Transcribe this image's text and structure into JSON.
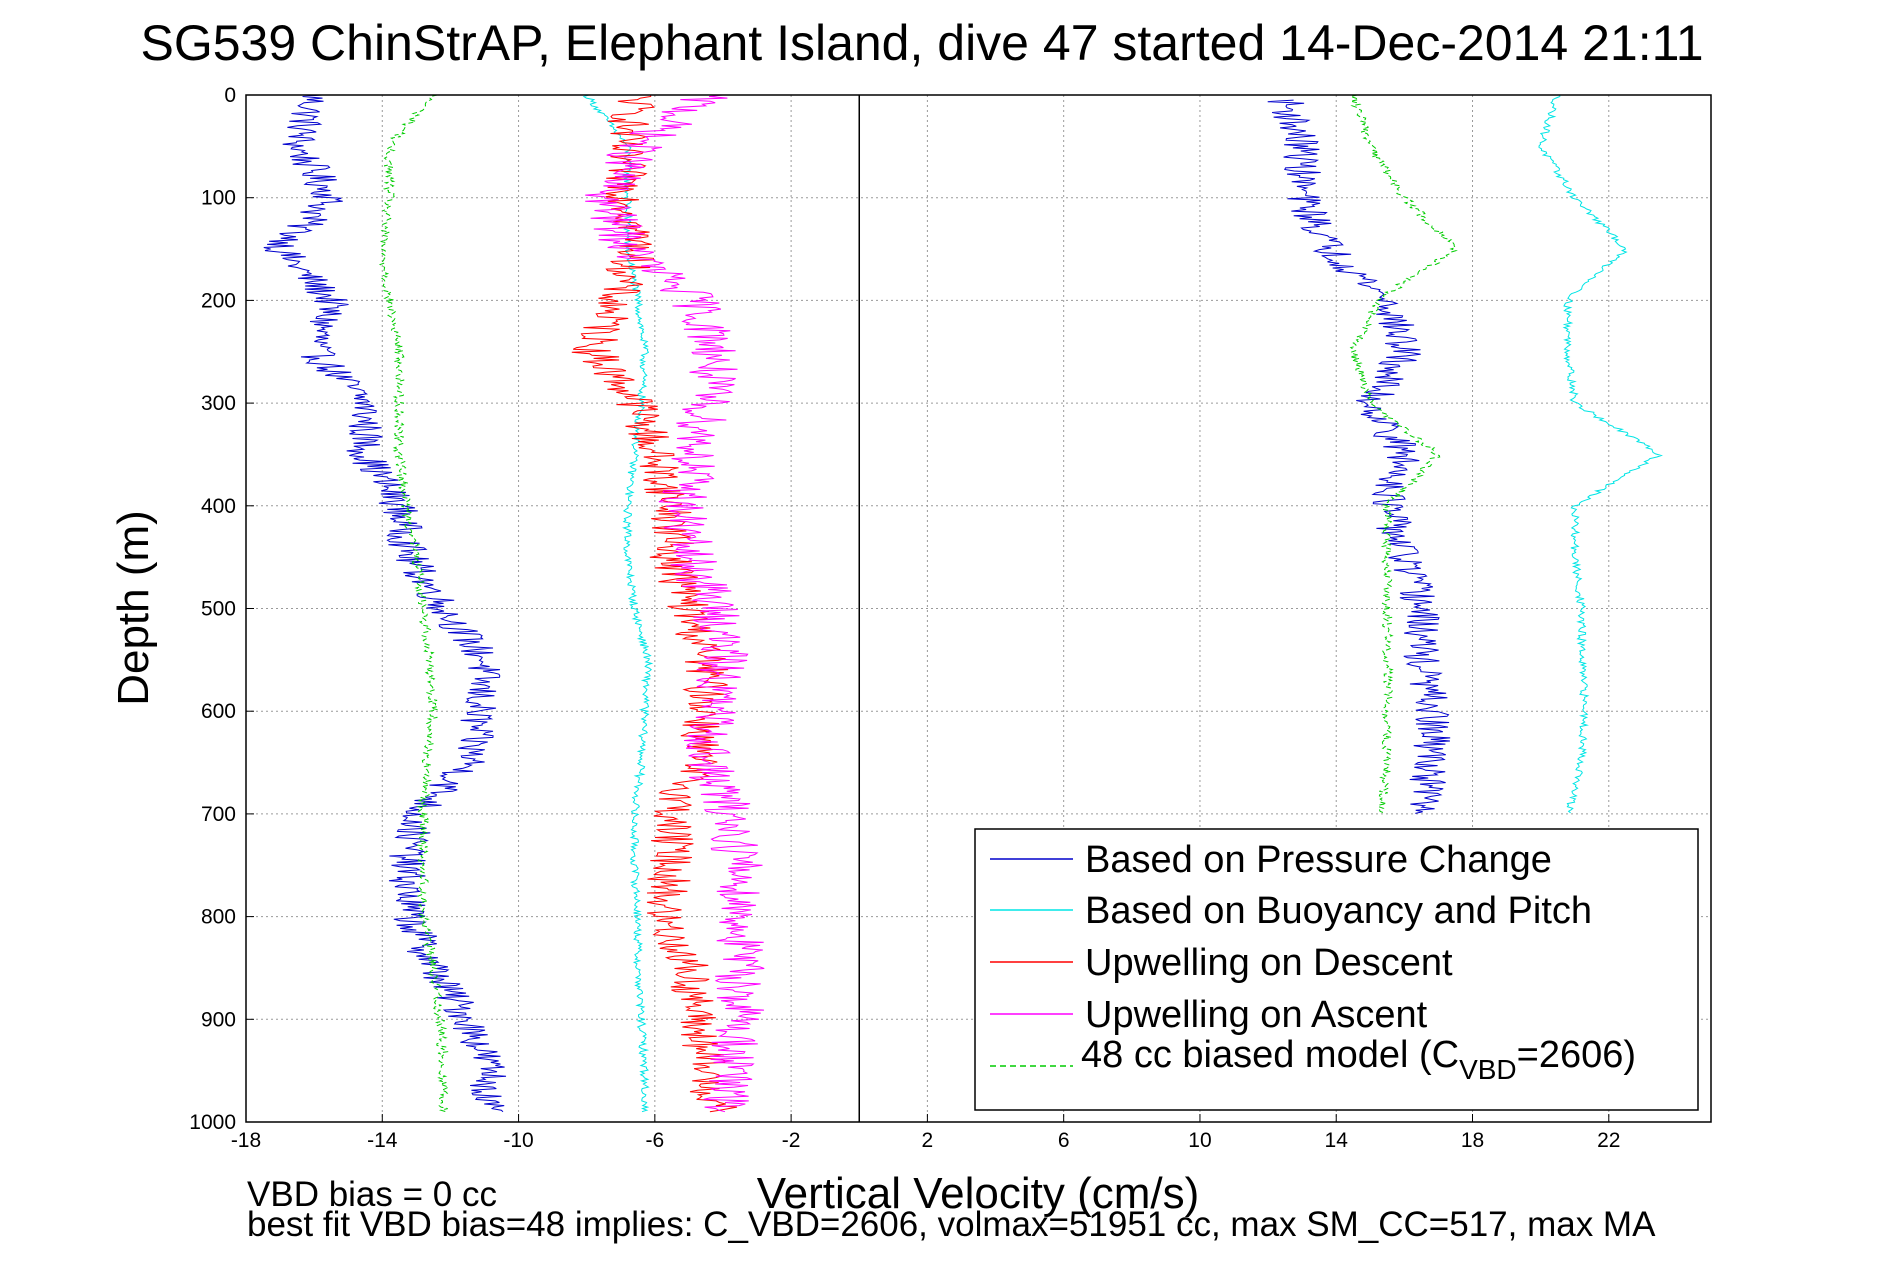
{
  "chart_data": {
    "type": "line",
    "title": "SG539 ChinStrAP, Elephant Island, dive 47 started 14-Dec-2014 21:11",
    "xlabel": "Vertical Velocity (cm/s)",
    "ylabel": "Depth (m)",
    "xlim": [
      -18,
      25
    ],
    "ylim": [
      0,
      1000
    ],
    "y_reversed": true,
    "grid": true,
    "xticks": [
      -18,
      -14,
      -10,
      -6,
      -2,
      2,
      6,
      10,
      14,
      18,
      22
    ],
    "yticks": [
      0,
      100,
      200,
      300,
      400,
      500,
      600,
      700,
      800,
      900,
      1000
    ],
    "xtick_labels": [
      "-18",
      "-14",
      "-10",
      "-6",
      "-2",
      "2",
      "6",
      "10",
      "14",
      "18",
      "22"
    ],
    "ytick_labels": [
      "0",
      "100",
      "200",
      "300",
      "400",
      "500",
      "600",
      "700",
      "800",
      "900",
      "1000"
    ],
    "legend_position": "bottom-right",
    "series": [
      {
        "name": "Based on Pressure Change",
        "color": "#0000cc",
        "style": "solid",
        "segments": [
          {
            "depth": [
              0,
              50,
              100,
              150,
              200,
              250,
              300,
              350,
              400,
              450,
              500,
              550,
              600,
              650,
              700,
              750,
              800,
              850,
              900,
              950,
              990
            ],
            "value": [
              -16.0,
              -16.5,
              -15.5,
              -17.0,
              -15.5,
              -16.0,
              -14.5,
              -14.5,
              -13.5,
              -13.2,
              -12.2,
              -11.0,
              -11.2,
              -11.4,
              -13.0,
              -13.3,
              -13.2,
              -12.5,
              -11.5,
              -10.8,
              -11.0
            ]
          },
          {
            "depth": [
              5,
              50,
              100,
              150,
              200,
              250,
              300,
              350,
              400,
              450,
              500,
              550,
              600,
              650,
              700
            ],
            "value": [
              12.5,
              13.0,
              13.0,
              13.8,
              15.5,
              16.0,
              15.0,
              16.0,
              15.5,
              16.0,
              16.5,
              16.5,
              16.8,
              16.8,
              16.5
            ]
          }
        ]
      },
      {
        "name": "Based on Buoyancy and Pitch",
        "color": "#00e5e5",
        "style": "solid",
        "segments": [
          {
            "depth": [
              0,
              50,
              100,
              150,
              200,
              250,
              300,
              350,
              400,
              450,
              500,
              550,
              600,
              650,
              700,
              750,
              800,
              850,
              900,
              950,
              990
            ],
            "value": [
              -8.0,
              -6.8,
              -6.8,
              -6.8,
              -6.5,
              -6.3,
              -6.4,
              -6.6,
              -6.8,
              -6.8,
              -6.6,
              -6.2,
              -6.3,
              -6.4,
              -6.6,
              -6.6,
              -6.5,
              -6.5,
              -6.4,
              -6.3,
              -6.3
            ]
          },
          {
            "depth": [
              0,
              50,
              100,
              150,
              200,
              250,
              300,
              350,
              400,
              450,
              500,
              550,
              600,
              650,
              700
            ],
            "value": [
              20.5,
              20.0,
              21.0,
              22.5,
              20.8,
              20.8,
              21.0,
              23.5,
              21.0,
              21.0,
              21.2,
              21.2,
              21.3,
              21.2,
              20.8
            ]
          }
        ]
      },
      {
        "name": "Upwelling on Descent",
        "color": "#ff0000",
        "style": "solid",
        "segments": [
          {
            "depth": [
              0,
              50,
              100,
              150,
              200,
              250,
              300,
              350,
              400,
              450,
              500,
              550,
              600,
              650,
              700,
              750,
              800,
              850,
              900,
              950,
              990
            ],
            "value": [
              -6.5,
              -7.0,
              -6.8,
              -6.5,
              -7.2,
              -7.8,
              -6.5,
              -6.0,
              -5.5,
              -5.5,
              -5.0,
              -4.5,
              -4.5,
              -4.8,
              -5.5,
              -5.5,
              -5.8,
              -5.0,
              -4.8,
              -4.5,
              -4.2
            ]
          }
        ]
      },
      {
        "name": "Upwelling on Ascent",
        "color": "#ff00ff",
        "style": "solid",
        "segments": [
          {
            "depth": [
              0,
              50,
              100,
              150,
              200,
              250,
              300,
              350,
              400,
              450,
              500,
              550,
              600,
              650,
              700,
              750,
              800,
              850,
              900,
              950,
              990
            ],
            "value": [
              -4.5,
              -6.5,
              -7.5,
              -6.8,
              -4.8,
              -4.2,
              -4.5,
              -4.8,
              -5.2,
              -5.0,
              -4.2,
              -4.0,
              -4.3,
              -4.5,
              -3.8,
              -3.5,
              -3.5,
              -3.5,
              -3.5,
              -3.8,
              -4.0
            ]
          }
        ]
      },
      {
        "name": "48 cc biased model (C",
        "name_subscript": "VBD",
        "name_suffix": "=2606)",
        "color": "#00cc00",
        "style": "dashed",
        "segments": [
          {
            "depth": [
              0,
              50,
              100,
              150,
              200,
              250,
              300,
              350,
              400,
              450,
              500,
              550,
              600,
              650,
              700,
              750,
              800,
              850,
              900,
              950,
              990
            ],
            "value": [
              -12.5,
              -13.8,
              -13.8,
              -14.0,
              -13.8,
              -13.5,
              -13.5,
              -13.5,
              -13.3,
              -13.0,
              -12.8,
              -12.6,
              -12.5,
              -12.7,
              -12.8,
              -12.8,
              -12.8,
              -12.5,
              -12.3,
              -12.2,
              -12.2
            ]
          },
          {
            "depth": [
              0,
              50,
              100,
              150,
              200,
              250,
              300,
              350,
              400,
              450,
              500,
              550,
              600,
              650,
              700
            ],
            "value": [
              14.5,
              15.0,
              16.0,
              17.5,
              15.2,
              14.5,
              15.0,
              17.0,
              15.5,
              15.5,
              15.5,
              15.5,
              15.5,
              15.5,
              15.3
            ]
          }
        ]
      }
    ],
    "annotations": [
      "VBD bias = 0 cc",
      "best fit VBD bias=48 implies: C_VBD=2606, volmax=51951 cc, max SM_CC=517, max MA"
    ]
  }
}
